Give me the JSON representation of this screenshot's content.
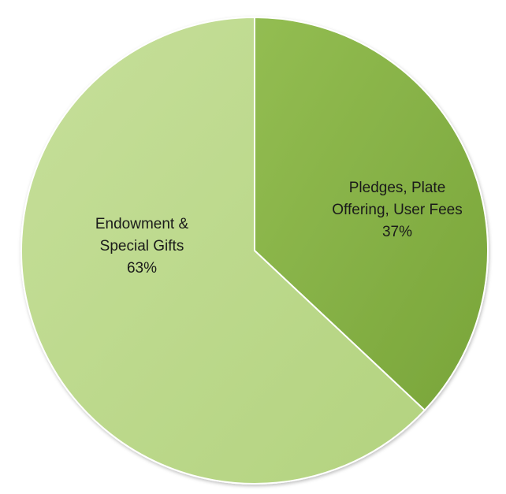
{
  "chart_data": {
    "type": "pie",
    "title": "",
    "start_angle_deg": 0,
    "direction": "clockwise",
    "legend": "none",
    "slices": [
      {
        "label_lines": [
          "Pledges, Plate",
          "Offering, User Fees",
          "37%"
        ],
        "value": 37,
        "color": "#79a53a",
        "color_light": "#93bd52"
      },
      {
        "label_lines": [
          "Endowment &",
          "Special Gifts",
          "63%"
        ],
        "value": 63,
        "color": "#b3d37f",
        "color_light": "#c6df9a"
      }
    ]
  }
}
